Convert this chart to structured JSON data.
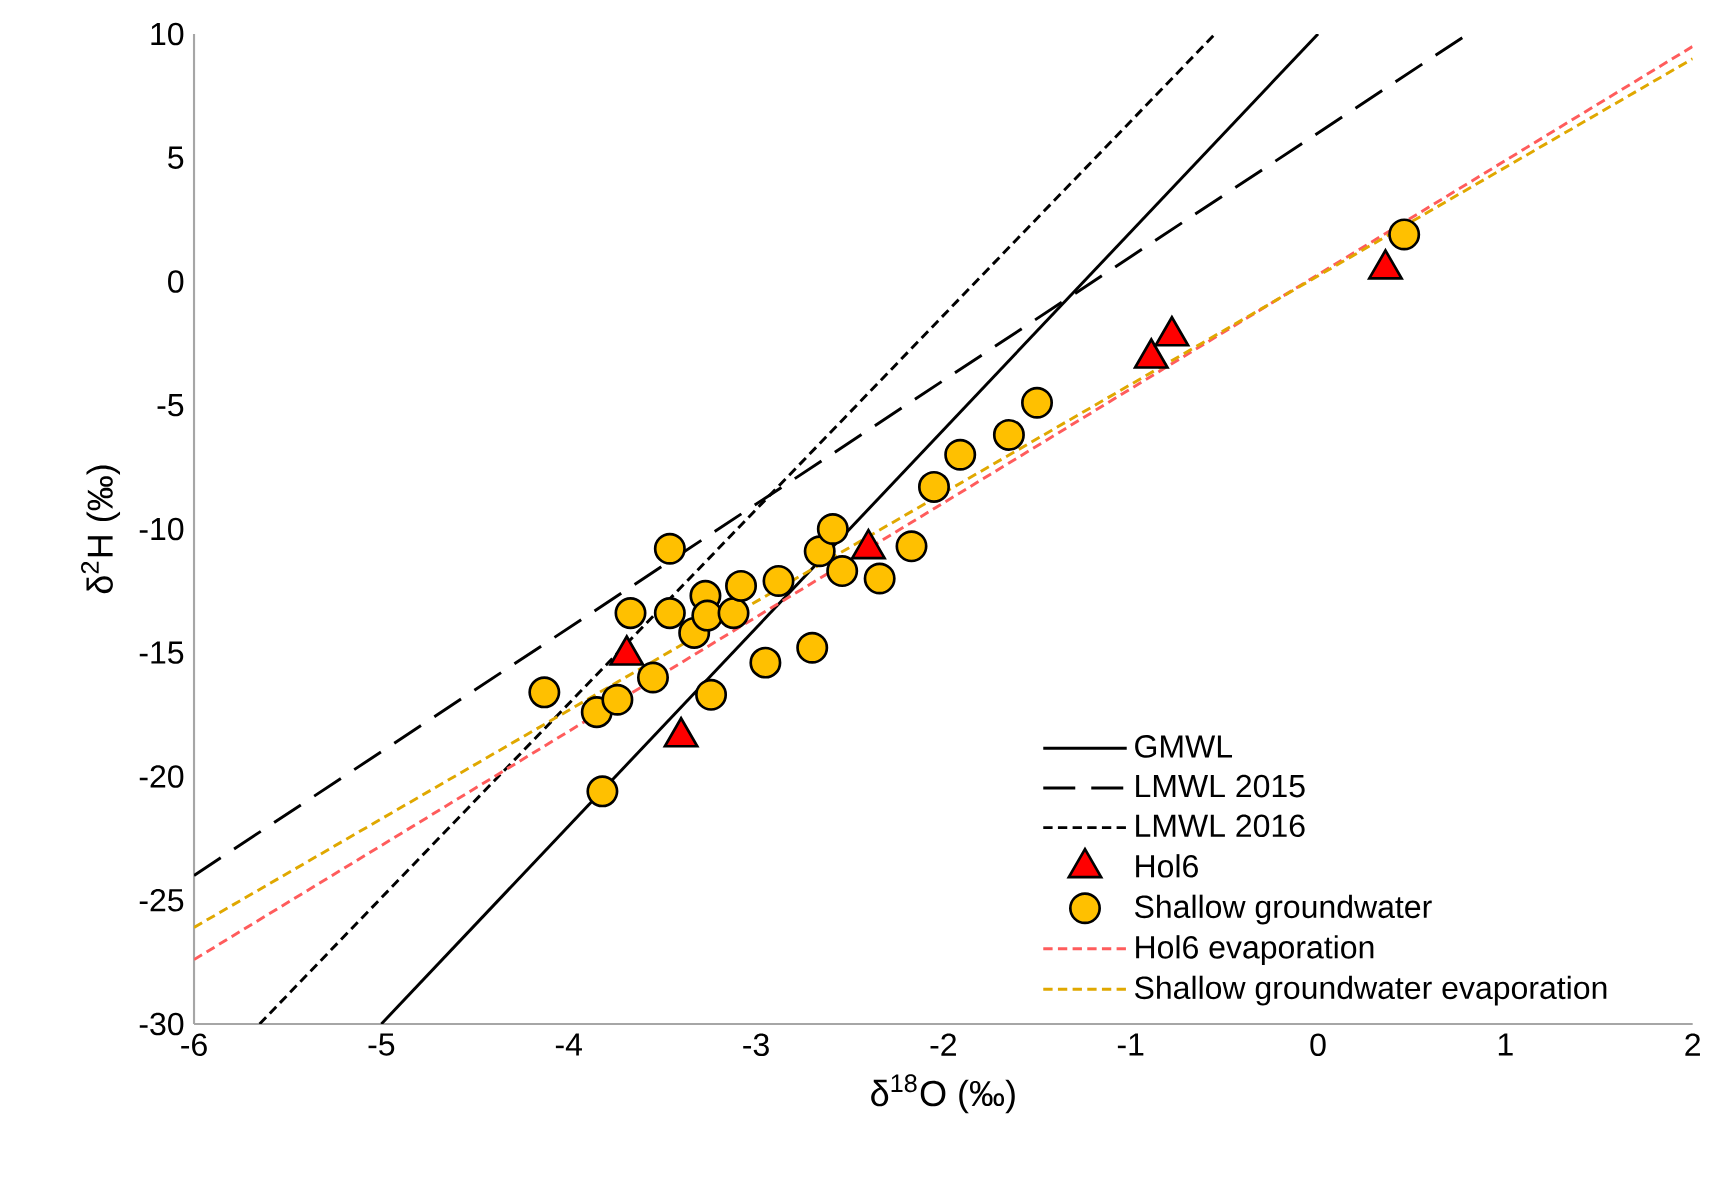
{
  "chart_data": {
    "type": "scatter",
    "xlabel": "δ$^{18}$O (‰)",
    "ylabel": "δ$^{2}$H (‰)",
    "xlim": [
      -6,
      2
    ],
    "ylim": [
      -30,
      10
    ],
    "xticks": [
      -6,
      -5,
      -4,
      -3,
      -2,
      -1,
      0,
      1,
      2
    ],
    "yticks": [
      -30,
      -25,
      -20,
      -15,
      -10,
      -5,
      0,
      5,
      10
    ],
    "grid": false,
    "legend": "bottom right",
    "series": [
      {
        "name": "GMWL",
        "type": "line",
        "color": "#000000",
        "line_style": "solid",
        "marker": "none",
        "x": [
          -5,
          0
        ],
        "values": [
          -30,
          10
        ]
      },
      {
        "name": "LMWL 2015",
        "type": "line",
        "color": "#000000",
        "line_style": "dashed",
        "marker": "none",
        "x": [
          -6,
          0.8
        ],
        "values": [
          -24,
          10
        ]
      },
      {
        "name": "LMWL 2016",
        "type": "line",
        "color": "#000000",
        "line_style": "dotted",
        "marker": "none",
        "x": [
          -5.65,
          -0.55
        ],
        "values": [
          -30,
          10
        ]
      },
      {
        "name": "Hol6",
        "color": "#ff0000",
        "marker": "triangle",
        "x": [
          -3.69,
          -3.4,
          -2.4,
          -0.89,
          -0.78,
          0.36
        ],
        "values": [
          -15.1,
          -18.4,
          -10.8,
          -3.1,
          -2.2,
          0.5
        ]
      },
      {
        "name": "Shallow groundwater",
        "color": "#ffc000",
        "marker": "circle",
        "x": [
          -4.13,
          -3.85,
          -3.74,
          -3.55,
          -3.82,
          -3.67,
          -3.46,
          -3.46,
          -3.33,
          -3.27,
          -3.26,
          -3.12,
          -3.08,
          -3.24,
          -2.95,
          -2.88,
          -2.7,
          -2.66,
          -2.59,
          -2.54,
          -2.34,
          -2.17,
          -2.05,
          -1.91,
          -1.65,
          -1.5,
          0.46
        ],
        "values": [
          -16.6,
          -17.4,
          -16.9,
          -16.0,
          -20.6,
          -13.4,
          -10.8,
          -13.4,
          -14.2,
          -12.7,
          -13.5,
          -13.4,
          -12.3,
          -16.7,
          -15.4,
          -12.1,
          -14.8,
          -10.9,
          -10.0,
          -11.7,
          -12.0,
          -10.7,
          -8.3,
          -7.0,
          -6.2,
          -4.9,
          1.9
        ]
      },
      {
        "name": "Hol6 evaporation",
        "type": "line",
        "color": "#ff5c5c",
        "line_style": "dotted",
        "marker": "none",
        "x": [
          -6,
          2
        ],
        "values": [
          -27.4,
          9.5
        ]
      },
      {
        "name": "Shallow groundwater evaporation",
        "type": "line",
        "color": "#e0a800",
        "line_style": "dotted",
        "marker": "none",
        "x": [
          -6,
          2
        ],
        "values": [
          -26.1,
          9.0
        ]
      }
    ]
  }
}
